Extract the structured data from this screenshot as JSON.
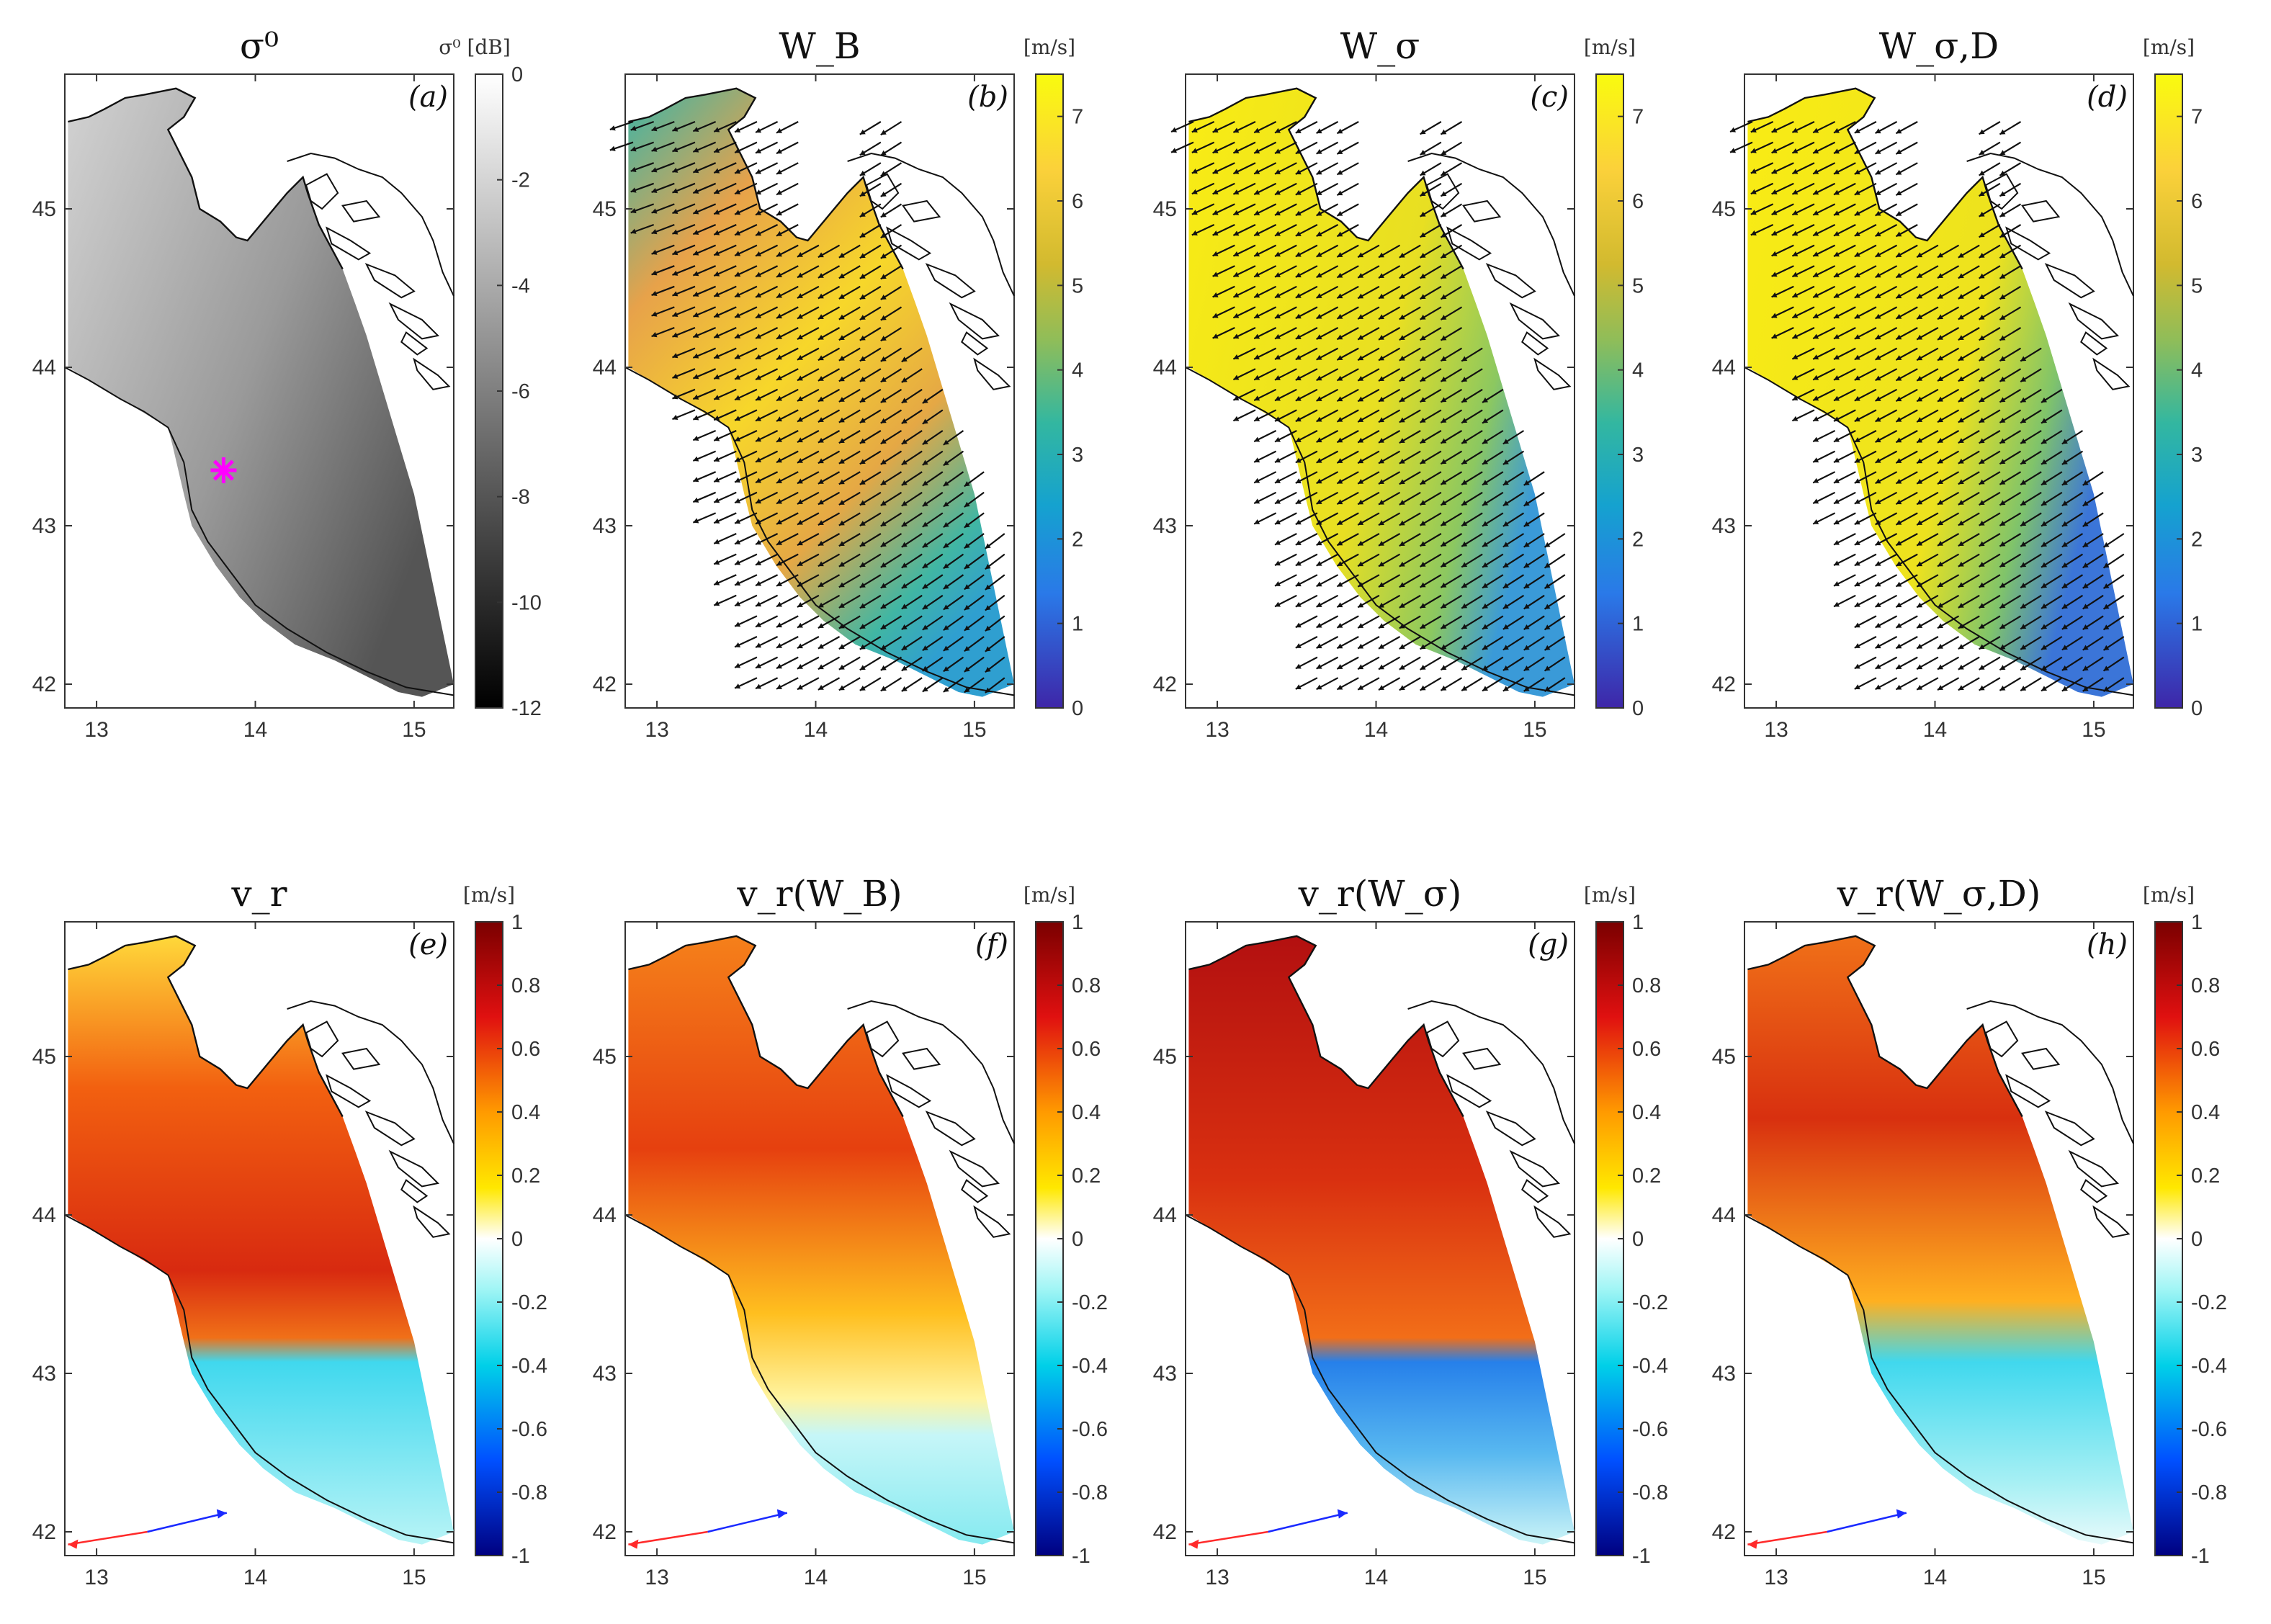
{
  "figure": {
    "rows": 2,
    "cols": 4
  },
  "colors": {
    "axis": "#333333",
    "coast": "#111111",
    "marker": "#ff00ff",
    "arrow_red": "#ff2a2a",
    "arrow_blue": "#1a2aff"
  },
  "chart_data": [
    {
      "type": "heatmap",
      "panel": "(a)",
      "title": "σ⁰",
      "colorbar_label": "σ⁰ [dB]",
      "colormap": "gray",
      "clim": [
        -12,
        0
      ],
      "cticks": [
        "0",
        "-2",
        "-4",
        "-6",
        "-8",
        "-10",
        "-12"
      ],
      "xlim": [
        12.8,
        15.25
      ],
      "ylim": [
        41.85,
        45.85
      ],
      "xticks": [
        "13",
        "14",
        "15"
      ],
      "yticks": [
        "42",
        "43",
        "44",
        "45"
      ],
      "marker": {
        "lon": 13.8,
        "lat": 43.35,
        "symbol": "*"
      }
    },
    {
      "type": "heatmap",
      "panel": "(b)",
      "title": "W_B",
      "colorbar_label": "[m/s]",
      "colormap": "parula",
      "clim": [
        0,
        7.5
      ],
      "cticks": [
        "7",
        "6",
        "5",
        "4",
        "3",
        "2",
        "1",
        "0"
      ],
      "xlim": [
        12.8,
        15.25
      ],
      "ylim": [
        41.85,
        45.85
      ],
      "xticks": [
        "13",
        "14",
        "15"
      ],
      "yticks": [
        "42",
        "43",
        "44",
        "45"
      ],
      "vectors": {
        "mean_direction_deg": 295,
        "description_count": "wind arrows"
      }
    },
    {
      "type": "heatmap",
      "panel": "(c)",
      "title": "W_σ",
      "colorbar_label": "[m/s]",
      "colormap": "parula",
      "clim": [
        0,
        7.5
      ],
      "cticks": [
        "7",
        "6",
        "5",
        "4",
        "3",
        "2",
        "1",
        "0"
      ],
      "xlim": [
        12.8,
        15.25
      ],
      "ylim": [
        41.85,
        45.85
      ],
      "xticks": [
        "13",
        "14",
        "15"
      ],
      "yticks": [
        "42",
        "43",
        "44",
        "45"
      ]
    },
    {
      "type": "heatmap",
      "panel": "(d)",
      "title": "W_σ,D",
      "colorbar_label": "[m/s]",
      "colormap": "parula",
      "clim": [
        0,
        7.5
      ],
      "cticks": [
        "7",
        "6",
        "5",
        "4",
        "3",
        "2",
        "1",
        "0"
      ],
      "xlim": [
        12.8,
        15.25
      ],
      "ylim": [
        41.85,
        45.85
      ],
      "xticks": [
        "13",
        "14",
        "15"
      ],
      "yticks": [
        "42",
        "43",
        "44",
        "45"
      ]
    },
    {
      "type": "heatmap",
      "panel": "(e)",
      "title": "v_r",
      "colorbar_label": "[m/s]",
      "colormap": "diverging",
      "clim": [
        -1,
        1
      ],
      "cticks": [
        "1",
        "0.8",
        "0.6",
        "0.4",
        "0.2",
        "0",
        "-0.2",
        "-0.4",
        "-0.6",
        "-0.8",
        "-1"
      ],
      "xlim": [
        12.8,
        15.25
      ],
      "ylim": [
        41.85,
        45.85
      ],
      "xticks": [
        "13",
        "14",
        "15"
      ],
      "yticks": [
        "42",
        "43",
        "44",
        "45"
      ]
    },
    {
      "type": "heatmap",
      "panel": "(f)",
      "title": "v_r(W_B)",
      "colorbar_label": "[m/s]",
      "colormap": "diverging",
      "clim": [
        -1,
        1
      ],
      "cticks": [
        "1",
        "0.8",
        "0.6",
        "0.4",
        "0.2",
        "0",
        "-0.2",
        "-0.4",
        "-0.6",
        "-0.8",
        "-1"
      ],
      "xlim": [
        12.8,
        15.25
      ],
      "ylim": [
        41.85,
        45.85
      ],
      "xticks": [
        "13",
        "14",
        "15"
      ],
      "yticks": [
        "42",
        "43",
        "44",
        "45"
      ]
    },
    {
      "type": "heatmap",
      "panel": "(g)",
      "title": "v_r(W_σ)",
      "colorbar_label": "[m/s]",
      "colormap": "diverging",
      "clim": [
        -1,
        1
      ],
      "cticks": [
        "1",
        "0.8",
        "0.6",
        "0.4",
        "0.2",
        "0",
        "-0.2",
        "-0.4",
        "-0.6",
        "-0.8",
        "-1"
      ],
      "xlim": [
        12.8,
        15.25
      ],
      "ylim": [
        41.85,
        45.85
      ],
      "xticks": [
        "13",
        "14",
        "15"
      ],
      "yticks": [
        "42",
        "43",
        "44",
        "45"
      ]
    },
    {
      "type": "heatmap",
      "panel": "(h)",
      "title": "v_r(W_σ,D)",
      "colorbar_label": "[m/s]",
      "colormap": "diverging",
      "clim": [
        -1,
        1
      ],
      "cticks": [
        "1",
        "0.8",
        "0.6",
        "0.4",
        "0.2",
        "0",
        "-0.2",
        "-0.4",
        "-0.6",
        "-0.8",
        "-1"
      ],
      "xlim": [
        12.8,
        15.25
      ],
      "ylim": [
        41.85,
        45.85
      ],
      "xticks": [
        "13",
        "14",
        "15"
      ],
      "yticks": [
        "42",
        "43",
        "44",
        "45"
      ]
    }
  ]
}
